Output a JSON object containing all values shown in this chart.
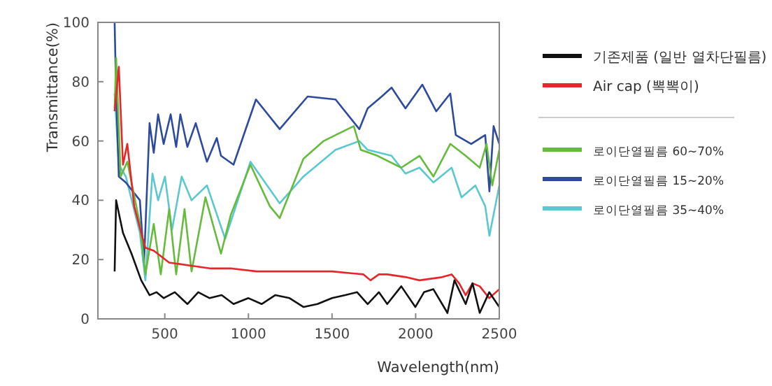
{
  "chart_data": {
    "type": "line",
    "xlabel": "Wavelength(nm)",
    "ylabel": "Transmittance(%)",
    "xlim": [
      100,
      2500
    ],
    "ylim": [
      0,
      100
    ],
    "xticks": [
      500,
      1000,
      1500,
      2000,
      2500
    ],
    "yticks": [
      0,
      20,
      40,
      60,
      80,
      100
    ],
    "grid": false,
    "legend": "right",
    "series": [
      {
        "name": "기존제품 (일반 열차단필름)",
        "color": "#111111",
        "x": [
          200,
          209,
          250,
          301,
          359,
          409,
          450,
          493,
          560,
          635,
          700,
          768,
          840,
          911,
          1000,
          1079,
          1160,
          1246,
          1330,
          1413,
          1500,
          1579,
          1650,
          1713,
          1780,
          1830,
          1914,
          1998,
          2050,
          2106,
          2190,
          2232,
          2299,
          2340,
          2383,
          2440,
          2500
        ],
        "values": [
          16,
          40,
          29,
          22,
          13,
          8,
          9,
          7,
          9,
          5,
          9,
          7,
          8,
          5,
          7,
          5,
          8,
          7,
          4,
          5,
          7,
          8,
          9,
          5,
          9,
          5,
          11,
          4,
          9,
          10,
          2,
          13,
          5,
          12,
          2,
          9,
          4
        ]
      },
      {
        "name": "Air cap (뽁뽁이)",
        "color": "#e8262a",
        "x": [
          200,
          225,
          250,
          276,
          317,
          359,
          384,
          434,
          526,
          650,
          777,
          900,
          1050,
          1187,
          1350,
          1500,
          1688,
          1730,
          1780,
          1830,
          1950,
          2023,
          2150,
          2215,
          2260,
          2299,
          2340,
          2383,
          2440,
          2500
        ],
        "values": [
          70,
          85,
          52,
          59,
          38,
          29,
          24,
          23,
          19,
          18,
          17,
          17,
          16,
          16,
          16,
          16,
          15,
          13,
          15,
          15,
          14,
          13,
          14,
          15,
          12,
          8,
          12,
          11,
          7,
          10
        ]
      },
      {
        "name": "로이단열필름 60~70%",
        "color": "#66bb3c",
        "x": [
          200,
          209,
          236,
          276,
          351,
          384,
          434,
          476,
          526,
          568,
          618,
          660,
          743,
          836,
          894,
          1012,
          1128,
          1187,
          1329,
          1450,
          1521,
          1630,
          1672,
          1772,
          1914,
          2023,
          2106,
          2207,
          2299,
          2383,
          2424,
          2458,
          2500
        ],
        "values": [
          71,
          88,
          48,
          53,
          32,
          15,
          32,
          15,
          37,
          15,
          37,
          16,
          41,
          22,
          35,
          52,
          38,
          34,
          54,
          60,
          62,
          65,
          57,
          55,
          51,
          55,
          48,
          59,
          55,
          51,
          59,
          45,
          57
        ]
      },
      {
        "name": "로이단열필름 15~20%",
        "color": "#2d4a9c",
        "x": [
          200,
          209,
          225,
          267,
          351,
          376,
          409,
          434,
          460,
          493,
          535,
          568,
          593,
          635,
          685,
          752,
          811,
          836,
          911,
          1045,
          1187,
          1354,
          1521,
          1663,
          1713,
          1797,
          1856,
          1939,
          2040,
          2123,
          2207,
          2240,
          2332,
          2416,
          2441,
          2466,
          2500
        ],
        "values": [
          100,
          76,
          48,
          46,
          40,
          19,
          66,
          56,
          69,
          59,
          69,
          58,
          69,
          58,
          66,
          53,
          61,
          55,
          52,
          74,
          64,
          75,
          74,
          64,
          71,
          75,
          78,
          71,
          79,
          70,
          76,
          62,
          59,
          62,
          43,
          65,
          59
        ]
      },
      {
        "name": "로이단열필름 35~40%",
        "color": "#5bc8d0",
        "x": [
          200,
          225,
          267,
          351,
          384,
          426,
          460,
          501,
          543,
          601,
          660,
          752,
          861,
          1012,
          1187,
          1329,
          1521,
          1663,
          1713,
          1856,
          1939,
          2023,
          2106,
          2215,
          2274,
          2357,
          2416,
          2441,
          2500
        ],
        "values": [
          76,
          52,
          48,
          29,
          13,
          49,
          40,
          48,
          30,
          48,
          40,
          45,
          27,
          53,
          39,
          48,
          57,
          60,
          57,
          55,
          49,
          51,
          46,
          51,
          41,
          45,
          38,
          28,
          45
        ]
      }
    ]
  }
}
